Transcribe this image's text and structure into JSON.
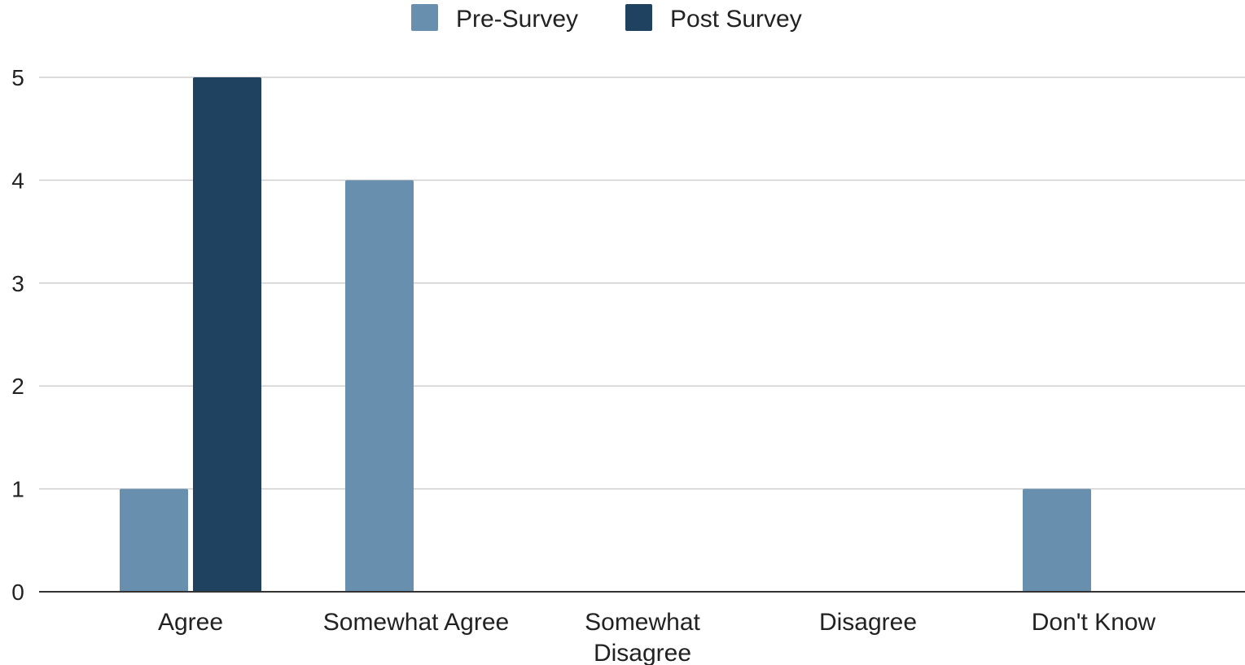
{
  "chart_data": {
    "type": "bar",
    "categories": [
      "Agree",
      "Somewhat Agree",
      "Somewhat Disagree",
      "Disagree",
      "Don't Know"
    ],
    "category_lines": [
      [
        "Agree"
      ],
      [
        "Somewhat Agree"
      ],
      [
        "Somewhat",
        "Disagree"
      ],
      [
        "Disagree"
      ],
      [
        "Don't Know"
      ]
    ],
    "series": [
      {
        "name": "Pre-Survey",
        "values": [
          1,
          4,
          0,
          0,
          1
        ],
        "color": "#6890ae"
      },
      {
        "name": "Post Survey",
        "values": [
          5,
          0,
          0,
          0,
          0
        ],
        "color": "#1e4260"
      }
    ],
    "title": "",
    "xlabel": "",
    "ylabel": "",
    "ylim": [
      0,
      5
    ],
    "yticks": [
      0,
      1,
      2,
      3,
      4,
      5
    ],
    "grid": true,
    "legend_position": "top"
  }
}
